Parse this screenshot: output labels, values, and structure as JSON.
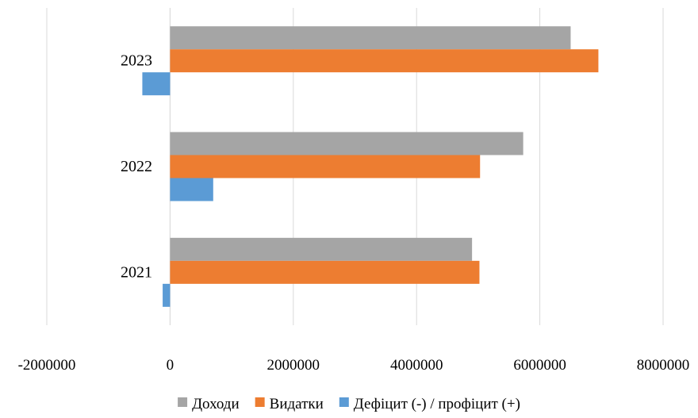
{
  "chart_data": {
    "type": "bar",
    "orientation": "horizontal",
    "categories": [
      "2021",
      "2022",
      "2023"
    ],
    "series": [
      {
        "name": "Доходи",
        "color": "#a5a5a5",
        "values": [
          4900000,
          5730000,
          6500000
        ]
      },
      {
        "name": "Видатки",
        "color": "#ed7d31",
        "values": [
          5020000,
          5030000,
          6950000
        ]
      },
      {
        "name": "Дефіцит (-) / профіцит (+)",
        "color": "#5b9bd5",
        "values": [
          -120000,
          700000,
          -450000
        ]
      }
    ],
    "x_ticks": [
      "-2000000",
      "0",
      "2000000",
      "4000000",
      "6000000",
      "8000000"
    ],
    "xlim": [
      -2000000,
      8000000
    ],
    "grid": true,
    "legend_position": "bottom",
    "title": "",
    "xlabel": "",
    "ylabel": ""
  }
}
